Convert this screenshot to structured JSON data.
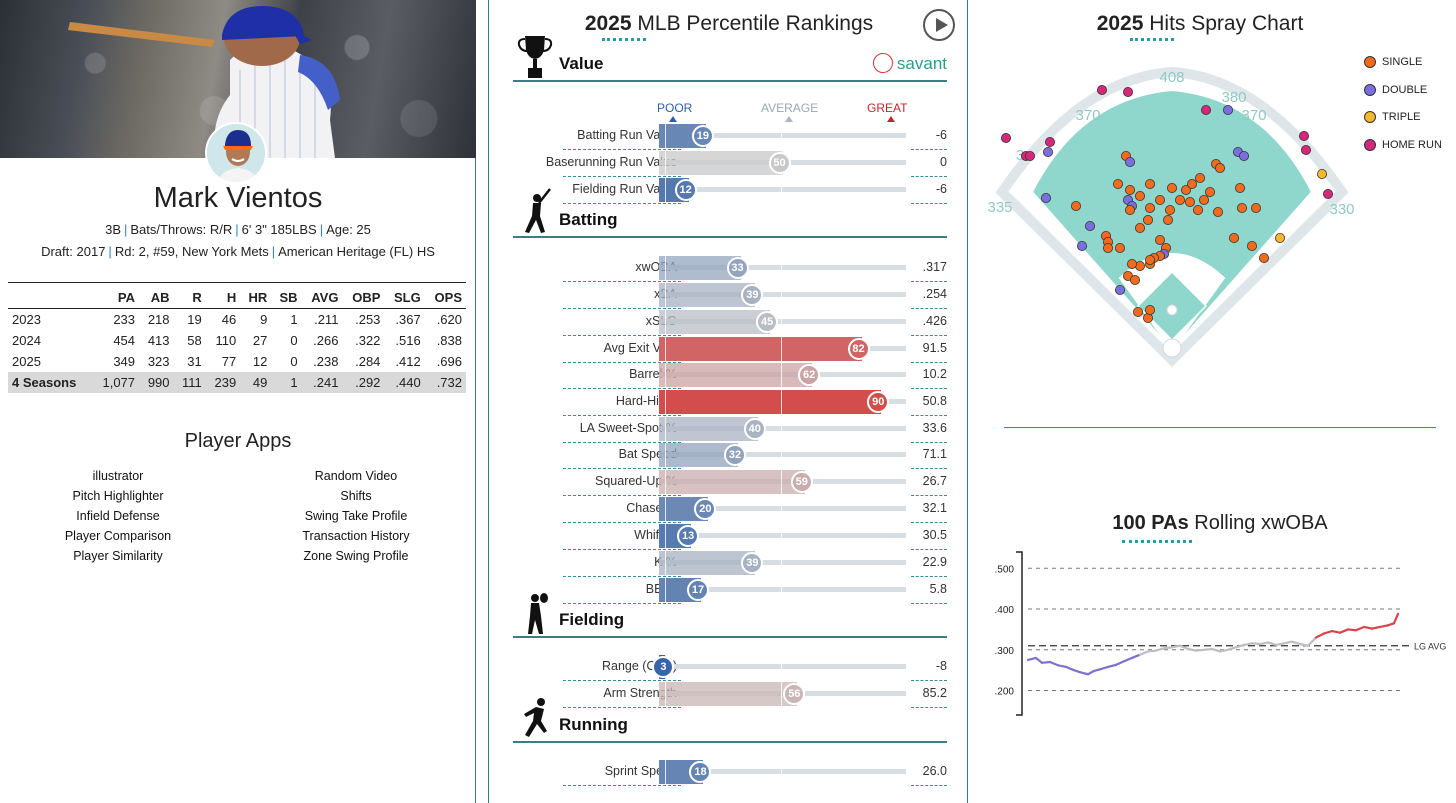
{
  "player": {
    "name": "Mark Vientos",
    "position": "3B",
    "bats_throws": "Bats/Throws: R/R",
    "height_weight": "6' 3\" 185LBS",
    "age": "Age: 25",
    "draft_prefix": "Draft:",
    "draft_year": "2017",
    "draft_pick": "Rd: 2, #59,",
    "draft_team": "New York Mets",
    "school": "American Heritage (FL) HS"
  },
  "stats_table": {
    "headers": [
      "",
      "PA",
      "AB",
      "R",
      "H",
      "HR",
      "SB",
      "AVG",
      "OBP",
      "SLG",
      "OPS"
    ],
    "rows": [
      [
        "2023",
        "233",
        "218",
        "19",
        "46",
        "9",
        "1",
        ".211",
        ".253",
        ".367",
        ".620"
      ],
      [
        "2024",
        "454",
        "413",
        "58",
        "110",
        "27",
        "0",
        ".266",
        ".322",
        ".516",
        ".838"
      ],
      [
        "2025",
        "349",
        "323",
        "31",
        "77",
        "12",
        "0",
        ".238",
        ".284",
        ".412",
        ".696"
      ],
      [
        "4 Seasons",
        "1,077",
        "990",
        "111",
        "239",
        "49",
        "1",
        ".241",
        ".292",
        ".440",
        ".732"
      ]
    ]
  },
  "apps": {
    "title": "Player Apps",
    "left": [
      "illustrator",
      "Pitch Highlighter",
      "Infield Defense",
      "Player Comparison",
      "Player Similarity"
    ],
    "right": [
      "Random Video",
      "Shifts",
      "Swing Take Profile",
      "Transaction History",
      "Zone Swing Profile"
    ]
  },
  "percentiles": {
    "title_year": "2025",
    "title_rest": "MLB Percentile Rankings",
    "brand": "savant",
    "scale": {
      "poor": "POOR",
      "average": "AVERAGE",
      "great": "GREAT"
    },
    "sections": [
      {
        "label": "Value",
        "metrics": [
          {
            "label": "Batting Run Value",
            "pct": 19,
            "value": "-6"
          },
          {
            "label": "Baserunning Run Value",
            "pct": 50,
            "value": "0"
          },
          {
            "label": "Fielding Run Value",
            "pct": 12,
            "value": "-6"
          }
        ]
      },
      {
        "label": "Batting",
        "metrics": [
          {
            "label": "xwOBA",
            "pct": 33,
            "value": ".317"
          },
          {
            "label": "xBA",
            "pct": 39,
            "value": ".254"
          },
          {
            "label": "xSLG",
            "pct": 45,
            "value": ".426"
          },
          {
            "label": "Avg Exit Velo",
            "pct": 82,
            "value": "91.5"
          },
          {
            "label": "Barrel %",
            "pct": 62,
            "value": "10.2"
          },
          {
            "label": "Hard-Hit %",
            "pct": 90,
            "value": "50.8"
          },
          {
            "label": "LA Sweet-Spot %",
            "pct": 40,
            "value": "33.6"
          },
          {
            "label": "Bat Speed",
            "pct": 32,
            "value": "71.1"
          },
          {
            "label": "Squared-Up %",
            "pct": 59,
            "value": "26.7"
          },
          {
            "label": "Chase %",
            "pct": 20,
            "value": "32.1"
          },
          {
            "label": "Whiff %",
            "pct": 13,
            "value": "30.5"
          },
          {
            "label": "K %",
            "pct": 39,
            "value": "22.9"
          },
          {
            "label": "BB %",
            "pct": 17,
            "value": "5.8"
          }
        ]
      },
      {
        "label": "Fielding",
        "metrics": [
          {
            "label": "Range (OAA)",
            "pct": 3,
            "value": "-8"
          },
          {
            "label": "Arm Strength",
            "pct": 56,
            "value": "85.2"
          }
        ]
      },
      {
        "label": "Running",
        "metrics": [
          {
            "label": "Sprint Speed",
            "pct": 18,
            "value": "26.0"
          }
        ]
      }
    ]
  },
  "spray": {
    "title_year": "2025",
    "title_rest": "Hits Spray Chart",
    "fence_labels": [
      "408",
      "380",
      "370",
      "370",
      "335",
      "330",
      "3"
    ],
    "legend": [
      {
        "label": "SINGLE",
        "color": "#f26b1d"
      },
      {
        "label": "DOUBLE",
        "color": "#7b6fe0"
      },
      {
        "label": "TRIPLE",
        "color": "#f5b82e"
      },
      {
        "label": "HOME RUN",
        "color": "#d6277a"
      }
    ]
  },
  "rolling": {
    "title_bold": "100 PAs",
    "title_rest": "Rolling xwOBA",
    "y_ticks": [
      ".500",
      ".400",
      ".300",
      ".200"
    ],
    "y_values": [
      0.5,
      0.4,
      0.3,
      0.2
    ],
    "lg_avg_label": "LG AVG",
    "lg_avg": 0.31
  },
  "colors": {
    "accent": "#3a7d85",
    "poor_blue": "#2f5fa8",
    "great_red": "#d62e2e",
    "field_green": "#8fd6cc"
  }
}
